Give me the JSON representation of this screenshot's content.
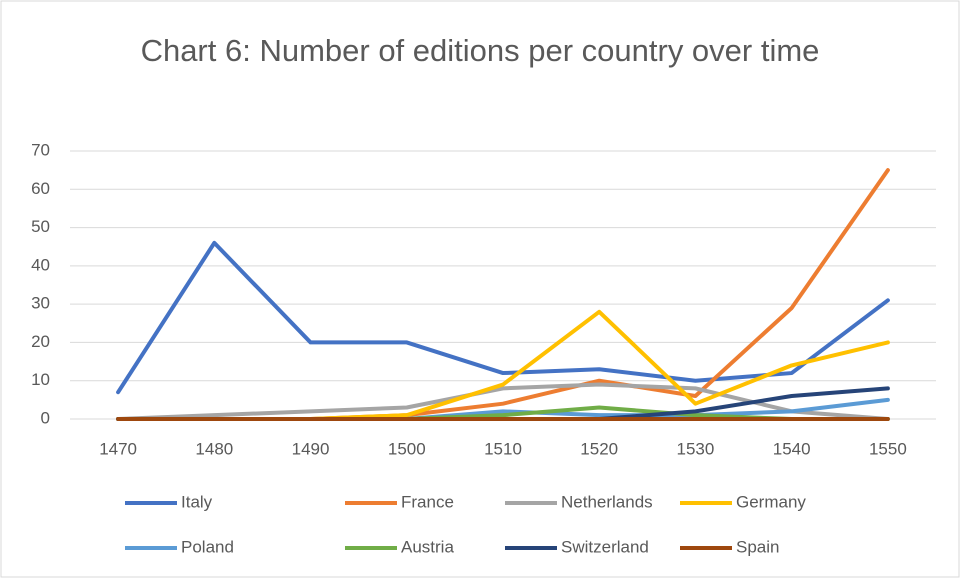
{
  "chart_data": {
    "type": "line",
    "title": "Chart 6: Number of editions per country over time",
    "categories": [
      1470,
      1480,
      1490,
      1500,
      1510,
      1520,
      1530,
      1540,
      1550
    ],
    "series": [
      {
        "name": "Italy",
        "color": "#4472c4",
        "values": [
          7,
          46,
          20,
          20,
          12,
          13,
          10,
          12,
          31
        ]
      },
      {
        "name": "France",
        "color": "#ed7d31",
        "values": [
          0,
          0,
          0,
          1,
          4,
          10,
          6,
          29,
          65
        ]
      },
      {
        "name": "Netherlands",
        "color": "#a5a5a5",
        "values": [
          0,
          1,
          2,
          3,
          8,
          9,
          8,
          2,
          0
        ]
      },
      {
        "name": "Germany",
        "color": "#ffc000",
        "values": [
          0,
          0,
          0,
          1,
          9,
          28,
          4,
          14,
          20
        ]
      },
      {
        "name": "Poland",
        "color": "#5b9bd5",
        "values": [
          0,
          0,
          0,
          0,
          2,
          1,
          1,
          2,
          5
        ]
      },
      {
        "name": "Austria",
        "color": "#70ad47",
        "values": [
          0,
          0,
          0,
          0,
          1,
          3,
          1,
          0,
          0
        ]
      },
      {
        "name": "Switzerland",
        "color": "#264478",
        "values": [
          0,
          0,
          0,
          0,
          0,
          0,
          2,
          6,
          8
        ]
      },
      {
        "name": "Spain",
        "color": "#9e480e",
        "values": [
          0,
          0,
          0,
          0,
          0,
          0,
          0,
          0,
          0
        ]
      }
    ],
    "ylim": [
      0,
      70
    ],
    "yticks": [
      0,
      10,
      20,
      30,
      40,
      50,
      60,
      70
    ],
    "grid": true,
    "legend": "bottom"
  }
}
